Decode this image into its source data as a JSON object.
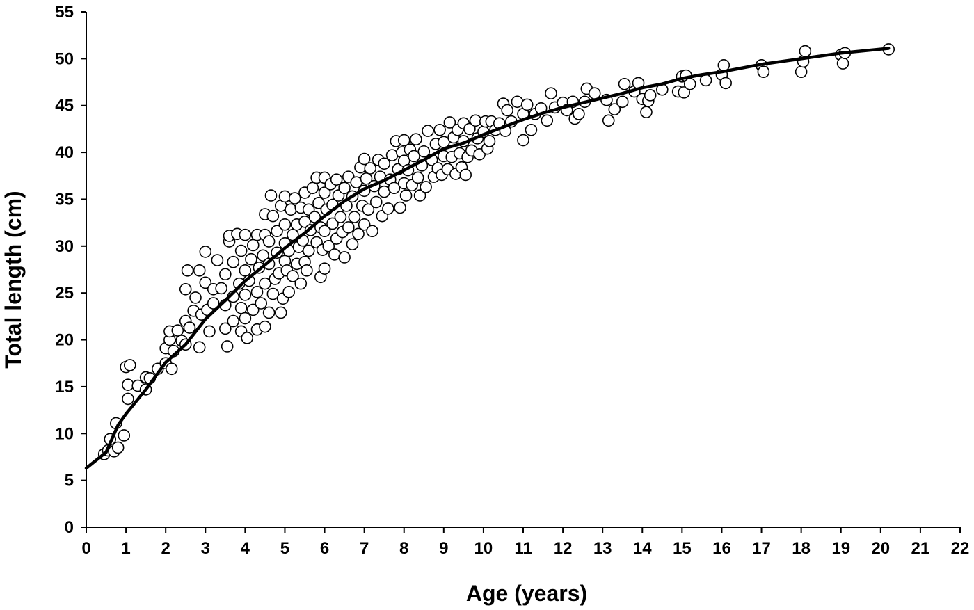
{
  "chart_data": {
    "type": "scatter",
    "title": "",
    "xlabel": "Age (years)",
    "ylabel": "Total  length (cm)",
    "xlim": [
      0,
      22
    ],
    "ylim": [
      0,
      55
    ],
    "x_ticks": [
      "0",
      "1",
      "2",
      "3",
      "4",
      "5",
      "6",
      "7",
      "8",
      "9",
      "10",
      "11",
      "12",
      "13",
      "14",
      "15",
      "16",
      "17",
      "18",
      "19",
      "20",
      "21",
      "22"
    ],
    "y_ticks": [
      "0",
      "5",
      "10",
      "15",
      "20",
      "25",
      "30",
      "35",
      "40",
      "45",
      "50",
      "55"
    ],
    "grid": false,
    "legend": "none",
    "colors": {
      "axis": "#000000",
      "marker_fill": "#ffffff",
      "marker_edge": "#000000",
      "fit_line": "#000000"
    },
    "series": [
      {
        "kind": "scatter",
        "points": [
          [
            0.45,
            7.8
          ],
          [
            0.55,
            8.2
          ],
          [
            0.6,
            9.4
          ],
          [
            0.7,
            8.1
          ],
          [
            0.75,
            11.1
          ],
          [
            0.8,
            8.5
          ],
          [
            0.95,
            9.8
          ],
          [
            1.0,
            17.1
          ],
          [
            1.05,
            13.7
          ],
          [
            1.05,
            15.2
          ],
          [
            1.1,
            17.3
          ],
          [
            1.3,
            15.1
          ],
          [
            1.5,
            14.7
          ],
          [
            1.5,
            16.0
          ],
          [
            1.6,
            15.9
          ],
          [
            1.8,
            16.9
          ],
          [
            2.0,
            17.5
          ],
          [
            2.0,
            19.1
          ],
          [
            2.1,
            20.0
          ],
          [
            2.1,
            20.9
          ],
          [
            2.15,
            16.9
          ],
          [
            2.2,
            18.8
          ],
          [
            2.3,
            21.0
          ],
          [
            2.4,
            19.9
          ],
          [
            2.5,
            19.5
          ],
          [
            2.5,
            22.0
          ],
          [
            2.5,
            25.4
          ],
          [
            2.55,
            27.4
          ],
          [
            2.6,
            21.3
          ],
          [
            2.7,
            23.1
          ],
          [
            2.75,
            24.5
          ],
          [
            2.85,
            19.2
          ],
          [
            2.85,
            27.4
          ],
          [
            2.9,
            22.7
          ],
          [
            3.0,
            26.1
          ],
          [
            3.0,
            29.4
          ],
          [
            3.05,
            23.2
          ],
          [
            3.1,
            20.9
          ],
          [
            3.2,
            23.9
          ],
          [
            3.2,
            25.4
          ],
          [
            3.3,
            28.5
          ],
          [
            3.4,
            25.5
          ],
          [
            3.5,
            21.2
          ],
          [
            3.5,
            23.7
          ],
          [
            3.5,
            27.0
          ],
          [
            3.55,
            19.3
          ],
          [
            3.6,
            30.5
          ],
          [
            3.6,
            31.1
          ],
          [
            3.7,
            22.0
          ],
          [
            3.7,
            24.6
          ],
          [
            3.7,
            28.3
          ],
          [
            3.8,
            31.3
          ],
          [
            3.85,
            26.0
          ],
          [
            3.9,
            20.9
          ],
          [
            3.9,
            23.4
          ],
          [
            3.9,
            29.5
          ],
          [
            4.0,
            22.3
          ],
          [
            4.0,
            24.8
          ],
          [
            4.0,
            27.4
          ],
          [
            4.0,
            31.2
          ],
          [
            4.05,
            20.2
          ],
          [
            4.1,
            26.3
          ],
          [
            4.15,
            28.6
          ],
          [
            4.2,
            23.2
          ],
          [
            4.2,
            30.1
          ],
          [
            4.3,
            21.1
          ],
          [
            4.3,
            25.1
          ],
          [
            4.3,
            31.2
          ],
          [
            4.35,
            27.7
          ],
          [
            4.4,
            23.9
          ],
          [
            4.45,
            29.0
          ],
          [
            4.5,
            21.4
          ],
          [
            4.5,
            26.0
          ],
          [
            4.5,
            31.2
          ],
          [
            4.5,
            33.4
          ],
          [
            4.6,
            22.9
          ],
          [
            4.6,
            28.1
          ],
          [
            4.6,
            30.5
          ],
          [
            4.65,
            35.4
          ],
          [
            4.7,
            24.9
          ],
          [
            4.7,
            33.2
          ],
          [
            4.75,
            26.5
          ],
          [
            4.8,
            29.3
          ],
          [
            4.8,
            31.6
          ],
          [
            4.85,
            27.1
          ],
          [
            4.9,
            22.9
          ],
          [
            4.9,
            34.3
          ],
          [
            4.95,
            24.4
          ],
          [
            5.0,
            28.4
          ],
          [
            5.0,
            30.3
          ],
          [
            5.0,
            32.3
          ],
          [
            5.0,
            35.3
          ],
          [
            5.05,
            27.4
          ],
          [
            5.1,
            25.1
          ],
          [
            5.1,
            29.5
          ],
          [
            5.15,
            33.9
          ],
          [
            5.2,
            26.8
          ],
          [
            5.2,
            31.2
          ],
          [
            5.25,
            35.1
          ],
          [
            5.3,
            28.1
          ],
          [
            5.3,
            32.3
          ],
          [
            5.35,
            29.9
          ],
          [
            5.4,
            26.0
          ],
          [
            5.4,
            34.1
          ],
          [
            5.45,
            30.6
          ],
          [
            5.5,
            28.3
          ],
          [
            5.5,
            32.6
          ],
          [
            5.5,
            35.7
          ],
          [
            5.55,
            27.4
          ],
          [
            5.6,
            29.5
          ],
          [
            5.6,
            33.9
          ],
          [
            5.65,
            31.7
          ],
          [
            5.7,
            36.2
          ],
          [
            5.75,
            33.1
          ],
          [
            5.8,
            30.4
          ],
          [
            5.8,
            37.3
          ],
          [
            5.85,
            34.6
          ],
          [
            5.9,
            32.0
          ],
          [
            5.9,
            26.7
          ],
          [
            5.95,
            29.6
          ],
          [
            6.0,
            27.6
          ],
          [
            6.0,
            31.6
          ],
          [
            6.0,
            35.7
          ],
          [
            6.0,
            37.3
          ],
          [
            6.05,
            33.9
          ],
          [
            6.1,
            30.0
          ],
          [
            6.15,
            36.6
          ],
          [
            6.2,
            32.4
          ],
          [
            6.2,
            34.4
          ],
          [
            6.25,
            29.1
          ],
          [
            6.3,
            37.1
          ],
          [
            6.3,
            30.8
          ],
          [
            6.35,
            35.4
          ],
          [
            6.4,
            33.1
          ],
          [
            6.45,
            31.5
          ],
          [
            6.5,
            28.8
          ],
          [
            6.5,
            36.2
          ],
          [
            6.55,
            34.3
          ],
          [
            6.6,
            32.0
          ],
          [
            6.6,
            37.4
          ],
          [
            6.7,
            30.2
          ],
          [
            6.7,
            35.3
          ],
          [
            6.75,
            33.1
          ],
          [
            6.8,
            36.8
          ],
          [
            6.85,
            31.3
          ],
          [
            6.9,
            38.4
          ],
          [
            6.95,
            34.3
          ],
          [
            7.0,
            32.3
          ],
          [
            7.0,
            35.9
          ],
          [
            7.0,
            39.3
          ],
          [
            7.05,
            37.2
          ],
          [
            7.1,
            33.9
          ],
          [
            7.15,
            38.3
          ],
          [
            7.2,
            31.6
          ],
          [
            7.25,
            36.4
          ],
          [
            7.3,
            34.7
          ],
          [
            7.35,
            39.2
          ],
          [
            7.4,
            37.4
          ],
          [
            7.45,
            33.2
          ],
          [
            7.5,
            35.8
          ],
          [
            7.5,
            38.8
          ],
          [
            7.6,
            34.0
          ],
          [
            7.65,
            37.1
          ],
          [
            7.7,
            39.7
          ],
          [
            7.75,
            36.2
          ],
          [
            7.8,
            41.2
          ],
          [
            7.85,
            38.2
          ],
          [
            7.9,
            34.1
          ],
          [
            7.95,
            40.0
          ],
          [
            8.0,
            36.7
          ],
          [
            8.0,
            39.1
          ],
          [
            8.0,
            41.3
          ],
          [
            8.05,
            35.4
          ],
          [
            8.1,
            38.1
          ],
          [
            8.15,
            40.3
          ],
          [
            8.2,
            36.5
          ],
          [
            8.25,
            39.6
          ],
          [
            8.3,
            41.4
          ],
          [
            8.35,
            37.3
          ],
          [
            8.4,
            35.4
          ],
          [
            8.45,
            38.6
          ],
          [
            8.5,
            40.1
          ],
          [
            8.55,
            36.3
          ],
          [
            8.6,
            42.3
          ],
          [
            8.7,
            39.2
          ],
          [
            8.75,
            37.4
          ],
          [
            8.8,
            40.9
          ],
          [
            8.85,
            38.3
          ],
          [
            8.9,
            42.4
          ],
          [
            8.95,
            37.6
          ],
          [
            9.0,
            39.6
          ],
          [
            9.0,
            41.1
          ],
          [
            9.1,
            38.2
          ],
          [
            9.15,
            43.2
          ],
          [
            9.2,
            39.5
          ],
          [
            9.25,
            41.6
          ],
          [
            9.3,
            37.7
          ],
          [
            9.35,
            42.4
          ],
          [
            9.4,
            39.9
          ],
          [
            9.45,
            38.4
          ],
          [
            9.5,
            41.2
          ],
          [
            9.5,
            43.1
          ],
          [
            9.55,
            37.6
          ],
          [
            9.6,
            39.5
          ],
          [
            9.65,
            42.5
          ],
          [
            9.7,
            40.2
          ],
          [
            9.8,
            43.4
          ],
          [
            9.85,
            41.5
          ],
          [
            9.9,
            39.8
          ],
          [
            10.0,
            42.2
          ],
          [
            10.05,
            43.3
          ],
          [
            10.1,
            40.4
          ],
          [
            10.15,
            41.2
          ],
          [
            10.2,
            43.3
          ],
          [
            10.3,
            42.4
          ],
          [
            10.4,
            43.1
          ],
          [
            10.5,
            45.2
          ],
          [
            10.55,
            42.3
          ],
          [
            10.6,
            44.5
          ],
          [
            10.7,
            43.3
          ],
          [
            10.85,
            45.4
          ],
          [
            11.0,
            44.1
          ],
          [
            11.0,
            41.3
          ],
          [
            11.1,
            45.1
          ],
          [
            11.2,
            42.4
          ],
          [
            11.3,
            44.1
          ],
          [
            11.45,
            44.7
          ],
          [
            11.6,
            43.4
          ],
          [
            11.7,
            46.3
          ],
          [
            11.8,
            44.8
          ],
          [
            12.0,
            45.3
          ],
          [
            12.1,
            44.5
          ],
          [
            12.25,
            45.4
          ],
          [
            12.3,
            43.6
          ],
          [
            12.4,
            44.1
          ],
          [
            12.55,
            45.4
          ],
          [
            12.6,
            46.8
          ],
          [
            12.8,
            46.3
          ],
          [
            13.1,
            45.6
          ],
          [
            13.15,
            43.4
          ],
          [
            13.3,
            44.6
          ],
          [
            13.5,
            45.4
          ],
          [
            13.55,
            47.3
          ],
          [
            13.8,
            46.5
          ],
          [
            13.9,
            47.4
          ],
          [
            14.0,
            45.7
          ],
          [
            14.1,
            44.3
          ],
          [
            14.15,
            45.5
          ],
          [
            14.2,
            46.1
          ],
          [
            14.5,
            46.7
          ],
          [
            14.9,
            46.5
          ],
          [
            15.0,
            48.1
          ],
          [
            15.05,
            46.4
          ],
          [
            15.1,
            48.2
          ],
          [
            15.2,
            47.3
          ],
          [
            15.6,
            47.7
          ],
          [
            16.0,
            48.3
          ],
          [
            16.05,
            49.3
          ],
          [
            16.1,
            47.4
          ],
          [
            17.0,
            49.3
          ],
          [
            17.05,
            48.6
          ],
          [
            18.0,
            48.6
          ],
          [
            18.05,
            49.7
          ],
          [
            18.1,
            50.8
          ],
          [
            19.0,
            50.4
          ],
          [
            19.05,
            49.5
          ],
          [
            19.1,
            50.6
          ],
          [
            20.2,
            51.0
          ]
        ]
      },
      {
        "kind": "line",
        "points": [
          [
            0,
            6.3
          ],
          [
            0.5,
            8.0
          ],
          [
            0.8,
            10.9
          ],
          [
            1.0,
            12.1
          ],
          [
            1.5,
            14.7
          ],
          [
            2.0,
            17.6
          ],
          [
            2.5,
            19.5
          ],
          [
            3.0,
            22.2
          ],
          [
            3.5,
            24.2
          ],
          [
            4.0,
            26.3
          ],
          [
            4.5,
            28.0
          ],
          [
            5.0,
            29.8
          ],
          [
            5.5,
            31.4
          ],
          [
            6.0,
            33.2
          ],
          [
            6.5,
            34.8
          ],
          [
            7.0,
            36.1
          ],
          [
            7.5,
            37.0
          ],
          [
            8.0,
            38.1
          ],
          [
            8.5,
            39.2
          ],
          [
            9.0,
            40.4
          ],
          [
            9.5,
            41.0
          ],
          [
            10.0,
            41.9
          ],
          [
            10.5,
            42.7
          ],
          [
            11.0,
            43.5
          ],
          [
            11.5,
            44.2
          ],
          [
            12.0,
            44.8
          ],
          [
            12.5,
            45.3
          ],
          [
            13.0,
            45.8
          ],
          [
            13.5,
            46.3
          ],
          [
            14.0,
            46.9
          ],
          [
            14.5,
            47.3
          ],
          [
            15.0,
            47.9
          ],
          [
            15.5,
            48.3
          ],
          [
            16.0,
            48.6
          ],
          [
            17.0,
            49.4
          ],
          [
            18.0,
            50.0
          ],
          [
            19.0,
            50.6
          ],
          [
            20.2,
            51.1
          ]
        ]
      }
    ]
  }
}
